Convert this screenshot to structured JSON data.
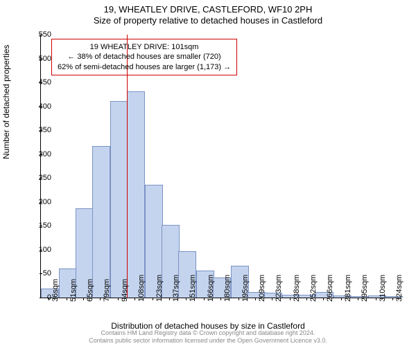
{
  "title": "19, WHEATLEY DRIVE, CASTLEFORD, WF10 2PH",
  "subtitle": "Size of property relative to detached houses in Castleford",
  "chart": {
    "type": "histogram",
    "ylabel": "Number of detached properties",
    "xlabel": "Distribution of detached houses by size in Castleford",
    "ylim": [
      0,
      550
    ],
    "yticks": [
      0,
      50,
      100,
      150,
      200,
      250,
      300,
      350,
      400,
      450,
      500,
      550
    ],
    "x_domain": [
      29,
      331
    ],
    "xticks": [
      36,
      51,
      65,
      79,
      94,
      108,
      123,
      137,
      151,
      166,
      180,
      195,
      209,
      223,
      238,
      252,
      266,
      281,
      295,
      310,
      324
    ],
    "xtick_suffix": "sqm",
    "bar_color": "#c5d4ee",
    "bar_border": "#7a92c4",
    "bar_width_units": 14.3,
    "vline_x": 101,
    "vline_color": "#cc0000",
    "annot_border": "#cc0000",
    "background_color": "#ffffff",
    "label_fontsize": 12,
    "tick_fontsize": 11,
    "bars": [
      {
        "x": 36,
        "y": 18
      },
      {
        "x": 51,
        "y": 60
      },
      {
        "x": 65,
        "y": 185
      },
      {
        "x": 79,
        "y": 315
      },
      {
        "x": 94,
        "y": 410
      },
      {
        "x": 108,
        "y": 430
      },
      {
        "x": 123,
        "y": 235
      },
      {
        "x": 137,
        "y": 150
      },
      {
        "x": 151,
        "y": 95
      },
      {
        "x": 166,
        "y": 55
      },
      {
        "x": 180,
        "y": 40
      },
      {
        "x": 195,
        "y": 65
      },
      {
        "x": 209,
        "y": 10
      },
      {
        "x": 223,
        "y": 8
      },
      {
        "x": 238,
        "y": 5
      },
      {
        "x": 252,
        "y": 4
      },
      {
        "x": 266,
        "y": 10
      },
      {
        "x": 281,
        "y": 3
      },
      {
        "x": 295,
        "y": 2
      },
      {
        "x": 310,
        "y": 3
      },
      {
        "x": 324,
        "y": 2
      }
    ],
    "annotation": {
      "line1": "19 WHEATLEY DRIVE: 101sqm",
      "line2": "← 38% of detached houses are smaller (720)",
      "line3": "62% of semi-detached houses are larger (1,173) →"
    }
  },
  "footer": {
    "line1": "Contains HM Land Registry data © Crown copyright and database right 2024.",
    "line2": "Contains public sector information licensed under the Open Government Licence v3.0."
  }
}
